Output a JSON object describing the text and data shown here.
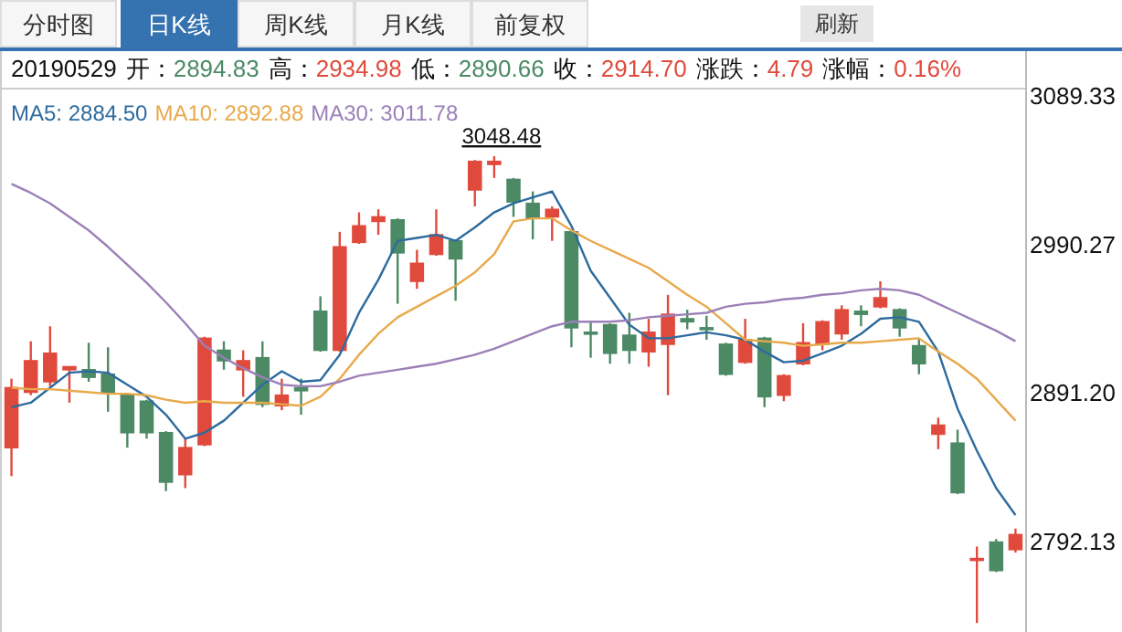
{
  "chart_data": {
    "type": "candlestick",
    "tick_labels": "y",
    "legend": "top left",
    "categories": [
      null,
      null,
      null,
      null,
      null,
      null,
      null,
      null,
      null,
      null,
      null,
      null,
      null,
      null,
      null,
      null,
      null,
      null,
      null,
      null,
      null,
      null,
      null,
      null,
      null,
      null,
      null,
      null,
      null,
      null,
      null,
      null,
      null,
      null,
      null,
      null,
      null,
      null,
      null,
      null,
      null,
      null,
      null,
      null,
      null,
      null,
      null,
      null,
      null,
      null,
      null,
      null,
      null
    ],
    "ohlc": [
      [
        2854,
        2900,
        2835,
        2894
      ],
      [
        2891,
        2925,
        2889,
        2912
      ],
      [
        2898,
        2935,
        2895,
        2917
      ],
      [
        2906,
        2908,
        2884,
        2908
      ],
      [
        2906,
        2924,
        2898,
        2901
      ],
      [
        2903,
        2921,
        2878,
        2891
      ],
      [
        2889,
        2890,
        2854,
        2864
      ],
      [
        2885,
        2886,
        2860,
        2864
      ],
      [
        2864,
        2865,
        2825,
        2831
      ],
      [
        2836,
        2860,
        2827,
        2854
      ],
      [
        2856,
        2928,
        2855,
        2927
      ],
      [
        2919,
        2925,
        2906,
        2912
      ],
      [
        2906,
        2919,
        2888,
        2912
      ],
      [
        2914,
        2925,
        2881,
        2883
      ],
      [
        2882,
        2900,
        2879,
        2889
      ],
      [
        2894,
        2900,
        2876,
        2892
      ],
      [
        2945,
        2955,
        2918,
        2919
      ],
      [
        2919,
        2998,
        2918,
        2988
      ],
      [
        2991,
        3011,
        2990,
        3002
      ],
      [
        3005,
        3013,
        2996,
        3008
      ],
      [
        3006,
        3007,
        2950,
        2984
      ],
      [
        2965,
        2986,
        2960,
        2977
      ],
      [
        2983,
        3013,
        2982,
        2996
      ],
      [
        2992,
        2993,
        2952,
        2980
      ],
      [
        3026,
        3046,
        3015,
        3045
      ],
      [
        3043,
        3048.48,
        3034,
        3045
      ],
      [
        3033,
        3034,
        3008,
        3018
      ],
      [
        3017,
        3025,
        2993,
        3007
      ],
      [
        3008,
        3015,
        2992,
        3013
      ],
      [
        2998,
        2999,
        2921,
        2934
      ],
      [
        2931,
        2938,
        2914,
        2930
      ],
      [
        2936,
        2937,
        2910,
        2917
      ],
      [
        2929,
        2944,
        2910,
        2919
      ],
      [
        2918,
        2940,
        2908,
        2931
      ],
      [
        2923,
        2956,
        2889,
        2943
      ],
      [
        2940,
        2946,
        2933,
        2938
      ],
      [
        2934,
        2942,
        2926,
        2933
      ],
      [
        2923,
        2924,
        2902,
        2903
      ],
      [
        2911,
        2940,
        2910,
        2926
      ],
      [
        2927,
        2928,
        2881,
        2888
      ],
      [
        2889,
        2903,
        2885,
        2902
      ],
      [
        2910,
        2937,
        2909,
        2924
      ],
      [
        2923,
        2939,
        2919,
        2938
      ],
      [
        2930,
        2949,
        2926,
        2946
      ],
      [
        2945,
        2949,
        2935,
        2943
      ],
      [
        2948,
        2965,
        2947,
        2954
      ],
      [
        2946,
        2947,
        2928,
        2934
      ],
      [
        2922,
        2927,
        2903,
        2910
      ],
      [
        2863,
        2874,
        2853,
        2869
      ],
      [
        2857,
        2866,
        2823,
        2824
      ],
      [
        2779,
        2788,
        2737,
        2780
      ],
      [
        2791,
        2793,
        2771,
        2772
      ],
      [
        2786,
        2800,
        2784,
        2796
      ]
    ],
    "colors": [
      "#e04a3c",
      "#e04a3c",
      "#e04a3c",
      "#e04a3c",
      "#4b8a64",
      "#4b8a64",
      "#4b8a64",
      "#4b8a64",
      "#4b8a64",
      "#e04a3c",
      "#e04a3c",
      "#4b8a64",
      "#e04a3c",
      "#4b8a64",
      "#e04a3c",
      "#4b8a64",
      "#4b8a64",
      "#e04a3c",
      "#e04a3c",
      "#e04a3c",
      "#4b8a64",
      "#e04a3c",
      "#e04a3c",
      "#4b8a64",
      "#e04a3c",
      "#e04a3c",
      "#4b8a64",
      "#4b8a64",
      "#e04a3c",
      "#4b8a64",
      "#4b8a64",
      "#4b8a64",
      "#4b8a64",
      "#e04a3c",
      "#e04a3c",
      "#4b8a64",
      "#4b8a64",
      "#4b8a64",
      "#e04a3c",
      "#4b8a64",
      "#e04a3c",
      "#e04a3c",
      "#e04a3c",
      "#e04a3c",
      "#4b8a64",
      "#e04a3c",
      "#4b8a64",
      "#4b8a64",
      "#e04a3c",
      "#4b8a64",
      "#e04a3c",
      "#4b8a64",
      "#e04a3c"
    ],
    "series": [
      {
        "type": "line",
        "name": "MA5: 2884.50",
        "color": "#2e6b9e",
        "values": [
          2881,
          2884,
          2894,
          2904,
          2905,
          2904,
          2896,
          2888,
          2876,
          2860,
          2864,
          2872,
          2884,
          2896,
          2905,
          2898,
          2899,
          2916,
          2944,
          2966,
          2992,
          2994,
          2996,
          2992,
          3001,
          3011,
          3017,
          3021,
          3025,
          3002,
          2972,
          2954,
          2936,
          2927,
          2927,
          2929,
          2931,
          2929,
          2926,
          2918,
          2911,
          2912,
          2917,
          2922,
          2930,
          2940,
          2941,
          2938,
          2918,
          2880,
          2852,
          2827,
          2809
        ]
      },
      {
        "type": "line",
        "name": "MA10: 2892.88",
        "color": "#e8a94b",
        "values": [
          2894,
          2893,
          2893,
          2892,
          2891,
          2890,
          2890,
          2889,
          2886,
          2884,
          2885,
          2884,
          2884,
          2884,
          2883,
          2882,
          2888,
          2900,
          2916,
          2930,
          2941,
          2948,
          2955,
          2962,
          2971,
          2983,
          3005,
          3007,
          3007,
          2999,
          2992,
          2986,
          2980,
          2974,
          2965,
          2956,
          2948,
          2937,
          2926,
          2925,
          2924,
          2922,
          2923,
          2924,
          2924,
          2925,
          2926,
          2927,
          2918,
          2910,
          2900,
          2886,
          2872
        ]
      },
      {
        "type": "line",
        "name": "MA30: 3011.78",
        "color": "#9b80b8",
        "values": [
          3030,
          3024,
          3017,
          3008,
          2999,
          2988,
          2976,
          2964,
          2951,
          2937,
          2922,
          2914,
          2907,
          2901,
          2896,
          2895,
          2895,
          2898,
          2902,
          2904,
          2906,
          2908,
          2910,
          2913,
          2916,
          2920,
          2925,
          2930,
          2935,
          2938,
          2938,
          2938,
          2939,
          2941,
          2942,
          2943,
          2944,
          2948,
          2950,
          2951,
          2953,
          2954,
          2956,
          2957,
          2959,
          2960,
          2959,
          2956,
          2950,
          2944,
          2938,
          2932,
          2925
        ]
      }
    ],
    "ylim": [
      2731,
      3089.33
    ],
    "yticks": [
      {
        "value": 3089.33,
        "label": "3089.33"
      },
      {
        "value": 2990.27,
        "label": "2990.27"
      },
      {
        "value": 2891.2,
        "label": "2891.20"
      },
      {
        "value": 2792.13,
        "label": "2792.13"
      }
    ],
    "annotations": [
      "分时图",
      "日K线",
      "周K线",
      "月K线",
      "前复权",
      "刷新",
      "20190529",
      "开：",
      "2894.83",
      "高：",
      "2934.98",
      "低：",
      "2890.66",
      "收：",
      "2914.70",
      "涨跌：",
      "4.79",
      "涨幅：",
      "0.16%",
      {
        "text": "3048.48",
        "y": 3048.48
      }
    ]
  }
}
